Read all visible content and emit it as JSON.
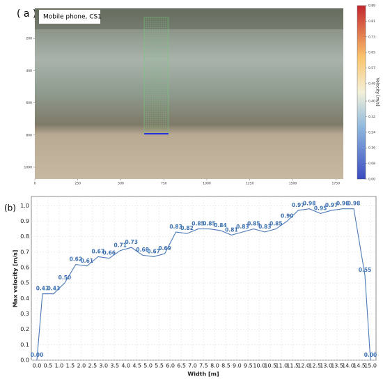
{
  "panel_a": {
    "label": "( a )",
    "caption": "Mobile phone, CS1",
    "xticks": [
      0,
      250,
      500,
      750,
      1000,
      1250,
      1500,
      1750
    ],
    "yticks": [
      200,
      400,
      600,
      800,
      1000
    ],
    "colorbar": {
      "label": "Velocity [m/s]",
      "lim": [
        0,
        0.89
      ],
      "ticks": [
        {
          "value": 0,
          "label": "0.00"
        },
        {
          "value": 0.08,
          "label": "0.08"
        },
        {
          "value": 0.16,
          "label": "0.16"
        },
        {
          "value": 0.24,
          "label": "0.24"
        },
        {
          "value": 0.32,
          "label": "0.32"
        },
        {
          "value": 0.4,
          "label": "0.40"
        },
        {
          "value": 0.49,
          "label": "0.49"
        },
        {
          "value": 0.57,
          "label": "0.57"
        },
        {
          "value": 0.65,
          "label": "0.65"
        },
        {
          "value": 0.73,
          "label": "0.73"
        },
        {
          "value": 0.81,
          "label": "0.81"
        },
        {
          "value": 0.89,
          "label": "0.89"
        }
      ]
    }
  },
  "chart_data": {
    "type": "line",
    "panel_label": "(b)",
    "x_label": "Width [m]",
    "y_label": "Max velocity [m/s]",
    "color": "#4a7ab8",
    "grid": true,
    "x": [
      0,
      0.25,
      0.75,
      1.25,
      1.75,
      2.25,
      2.75,
      3.25,
      3.75,
      4.25,
      4.75,
      5.25,
      5.75,
      6.25,
      6.75,
      7.25,
      7.75,
      8.25,
      8.75,
      9.25,
      9.75,
      10.25,
      10.75,
      11.25,
      11.75,
      12.25,
      12.75,
      13.25,
      13.75,
      14.25,
      14.75,
      15
    ],
    "values": [
      0,
      0.43,
      0.43,
      0.5,
      0.62,
      0.61,
      0.67,
      0.66,
      0.71,
      0.73,
      0.68,
      0.67,
      0.69,
      0.83,
      0.82,
      0.85,
      0.85,
      0.84,
      0.81,
      0.83,
      0.85,
      0.83,
      0.85,
      0.9,
      0.97,
      0.98,
      0.95,
      0.97,
      0.98,
      0.98,
      0.55,
      0
    ],
    "value_labels": [
      "0.00",
      "0.43",
      "0.43",
      "0.50",
      "0.62",
      "0.61",
      "0.67",
      "0.66",
      "0.71",
      "0.73",
      "0.68",
      "0.67",
      "0.69",
      "0.83",
      "0.82",
      "0.85",
      "0.85",
      "0.84",
      "0.81",
      "0.83",
      "0.85",
      "0.83",
      "0.85",
      "0.90",
      "0.97",
      "0.98",
      "0.95",
      "0.97",
      "0.98",
      "0.98",
      "0.55",
      "0.00"
    ],
    "xlim": [
      -0.25,
      15.25
    ],
    "ylim": [
      0,
      1.06
    ],
    "xticks": [
      {
        "value": 0,
        "label": "0.0"
      },
      0.5,
      {
        "value": 1,
        "label": "1.0"
      },
      1.5,
      {
        "value": 2,
        "label": "2.0"
      },
      2.5,
      {
        "value": 3,
        "label": "3.0"
      },
      3.5,
      {
        "value": 4,
        "label": "4.0"
      },
      4.5,
      {
        "value": 5,
        "label": "5.0"
      },
      5.5,
      {
        "value": 6,
        "label": "6.0"
      },
      6.5,
      {
        "value": 7,
        "label": "7.0"
      },
      7.5,
      {
        "value": 8,
        "label": "8.0"
      },
      8.5,
      {
        "value": 9,
        "label": "9.0"
      },
      9.5,
      {
        "value": 10,
        "label": "10.0"
      },
      10.5,
      {
        "value": 11,
        "label": "11.0"
      },
      11.5,
      {
        "value": 12,
        "label": "12.0"
      },
      12.5,
      {
        "value": 13,
        "label": "13.0"
      },
      13.5,
      {
        "value": 14,
        "label": "14.0"
      },
      14.5,
      {
        "value": 15,
        "label": "15.0"
      }
    ],
    "yticks": [
      {
        "value": 0,
        "label": "0.0"
      },
      0.1,
      0.2,
      0.3,
      0.4,
      0.5,
      0.6,
      0.7,
      0.8,
      0.9,
      {
        "value": 1,
        "label": "1.0"
      }
    ]
  }
}
